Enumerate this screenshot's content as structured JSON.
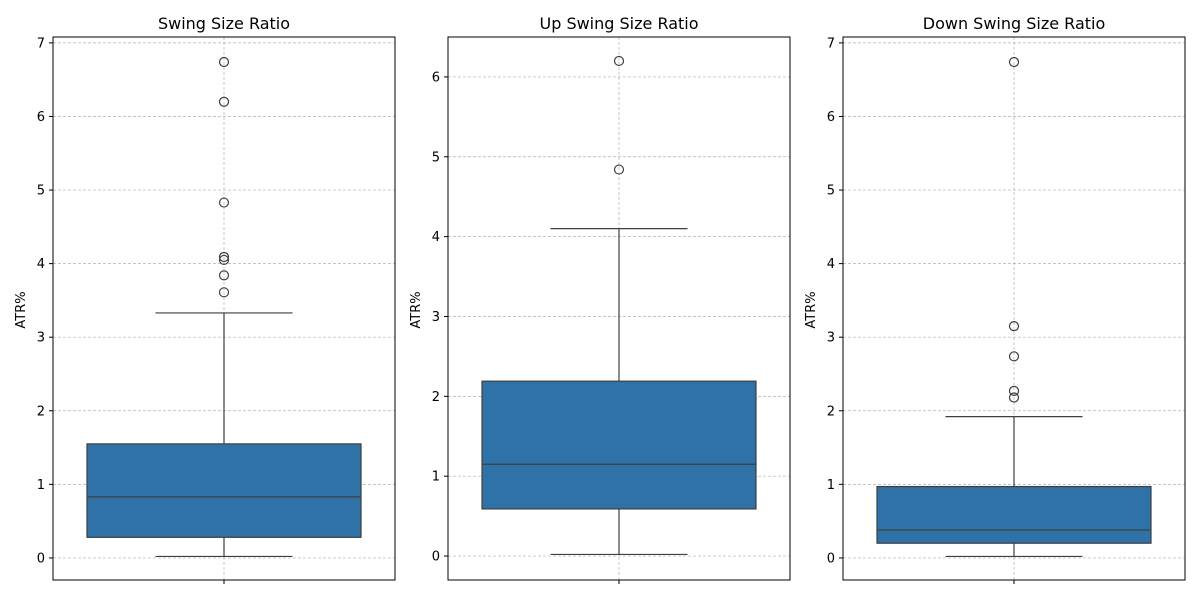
{
  "chart_data": [
    {
      "type": "box",
      "title": "Swing Size Ratio",
      "ylabel": "ATR%",
      "ylim": [
        -0.3,
        7.08
      ],
      "yticks": [
        0,
        1,
        2,
        3,
        4,
        5,
        6,
        7
      ],
      "grid": true,
      "box": {
        "whisker_low": 0.02,
        "q1": 0.28,
        "median": 0.83,
        "q3": 1.55,
        "whisker_high": 3.33
      },
      "outliers": [
        6.74,
        6.2,
        4.83,
        4.09,
        4.05,
        3.84,
        3.61
      ]
    },
    {
      "type": "box",
      "title": "Up Swing Size Ratio",
      "ylabel": "ATR%",
      "ylim": [
        -0.3,
        6.5
      ],
      "yticks": [
        0,
        1,
        2,
        3,
        4,
        5,
        6
      ],
      "grid": true,
      "box": {
        "whisker_low": 0.02,
        "q1": 0.59,
        "median": 1.15,
        "q3": 2.19,
        "whisker_high": 4.1
      },
      "outliers": [
        6.2,
        4.84
      ]
    },
    {
      "type": "box",
      "title": "Down Swing Size Ratio",
      "ylabel": "ATR%",
      "ylim": [
        -0.3,
        7.08
      ],
      "yticks": [
        0,
        1,
        2,
        3,
        4,
        5,
        6,
        7
      ],
      "grid": true,
      "box": {
        "whisker_low": 0.02,
        "q1": 0.2,
        "median": 0.38,
        "q3": 0.97,
        "whisker_high": 1.92
      },
      "outliers": [
        6.74,
        3.15,
        2.74,
        2.27,
        2.18
      ]
    }
  ],
  "colors": {
    "box_fill": "#2f72a8",
    "line": "#3f3f3f",
    "grid": "#b0b0b0"
  }
}
